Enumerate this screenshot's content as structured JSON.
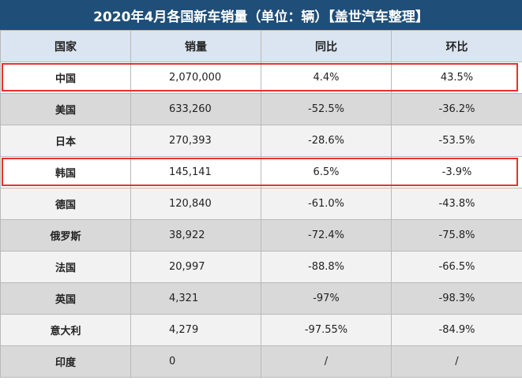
{
  "chart_data": {
    "type": "table",
    "title": "2020年4月各国新车销量（单位：辆）【盖世汽车整理】",
    "columns": [
      "国家",
      "销量",
      "同比",
      "环比"
    ],
    "rows": [
      {
        "country": "中国",
        "sales": "2,070,000",
        "yoy": "4.4%",
        "mom": "43.5%",
        "highlight": true
      },
      {
        "country": "美国",
        "sales": "633,260",
        "yoy": "-52.5%",
        "mom": "-36.2%",
        "highlight": false
      },
      {
        "country": "日本",
        "sales": "270,393",
        "yoy": "-28.6%",
        "mom": "-53.5%",
        "highlight": false
      },
      {
        "country": "韩国",
        "sales": "145,141",
        "yoy": "6.5%",
        "mom": "-3.9%",
        "highlight": true
      },
      {
        "country": "德国",
        "sales": "120,840",
        "yoy": "-61.0%",
        "mom": "-43.8%",
        "highlight": false
      },
      {
        "country": "俄罗斯",
        "sales": "38,922",
        "yoy": "-72.4%",
        "mom": "-75.8%",
        "highlight": false
      },
      {
        "country": "法国",
        "sales": "20,997",
        "yoy": "-88.8%",
        "mom": "-66.5%",
        "highlight": false
      },
      {
        "country": "英国",
        "sales": "4,321",
        "yoy": "-97%",
        "mom": "-98.3%",
        "highlight": false
      },
      {
        "country": "意大利",
        "sales": "4,279",
        "yoy": "-97.55%",
        "mom": "-84.9%",
        "highlight": false
      },
      {
        "country": "印度",
        "sales": "0",
        "yoy": "/",
        "mom": "/",
        "highlight": false
      }
    ]
  },
  "colors": {
    "title_bg": "#1f4e79",
    "header_bg": "#dbe5f1",
    "highlight_border": "#e8312f"
  }
}
